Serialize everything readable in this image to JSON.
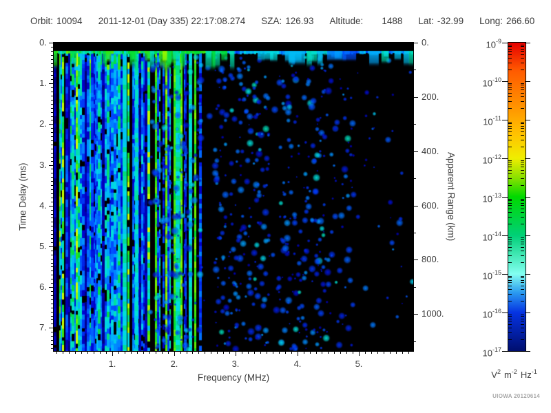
{
  "header": {
    "orbit_label": "Orbit:",
    "orbit_value": "10094",
    "datetime": "2011-12-01 (Day 335) 22:17:08.274",
    "sza_label": "SZA:",
    "sza_value": "126.93",
    "altitude_label": "Altitude:",
    "altitude_value": "1488",
    "lat_label": "Lat:",
    "lat_value": "-32.99",
    "long_label": "Long:",
    "long_value": "266.60"
  },
  "chart_data": {
    "type": "heatmap",
    "description": "Radar sounder ionogram: received spectral density vs frequency and time delay; dense blue/cyan/green vertical noise stripes below ~2.4 MHz, bright surface-echo band near 0.25 ms delay across all frequencies, diffuse blue speckle field at mid frequencies fading above ~4.9 MHz, black dropout bands near 2.5 and 3.6 MHz",
    "x_axis": {
      "label": "Frequency (MHz)",
      "range": [
        0.05,
        5.88
      ],
      "major_ticks": [
        1,
        2,
        3,
        4,
        5
      ],
      "major_tick_labels": [
        "1.",
        "2.",
        "3.",
        "4.",
        "5."
      ],
      "minor_tick_step": 0.1
    },
    "y_axis_left": {
      "label": "Time Delay (ms)",
      "range": [
        0,
        7.57
      ],
      "major_ticks": [
        0,
        1,
        2,
        3,
        4,
        5,
        6,
        7
      ],
      "major_tick_labels": [
        "0.",
        "1.",
        "2.",
        "3.",
        "4.",
        "5.",
        "6.",
        "7."
      ],
      "minor_tick_step": 0.1
    },
    "y_axis_right": {
      "label": "Apparent Range (km)",
      "range": [
        0,
        1136
      ],
      "major_ticks": [
        0,
        200,
        400,
        600,
        800,
        1000
      ],
      "major_tick_labels": [
        "0.",
        "200.",
        "400.",
        "600.",
        "800.",
        "1000."
      ],
      "minor_tick_step": 100
    },
    "colorbar": {
      "scale": "log",
      "mantissa_base": "10",
      "exponents": [
        "-9",
        "-10",
        "-11",
        "-12",
        "-13",
        "-14",
        "-15",
        "-16",
        "-17"
      ],
      "top_value": 1e-09,
      "bottom_value": 1e-17,
      "units_parts": [
        {
          "base": "V",
          "exp": "2"
        },
        {
          "base": "m",
          "exp": "-2"
        },
        {
          "base": "Hz",
          "exp": "-1"
        }
      ],
      "gradient_stops": [
        {
          "pos": 0.0,
          "color": "#e60000"
        },
        {
          "pos": 0.09,
          "color": "#ff5a00"
        },
        {
          "pos": 0.2,
          "color": "#ff8f00"
        },
        {
          "pos": 0.3,
          "color": "#ffc400"
        },
        {
          "pos": 0.375,
          "color": "#efee00"
        },
        {
          "pos": 0.44,
          "color": "#86e000"
        },
        {
          "pos": 0.5,
          "color": "#00d900"
        },
        {
          "pos": 0.625,
          "color": "#00d077"
        },
        {
          "pos": 0.75,
          "color": "#83fff1"
        },
        {
          "pos": 0.81,
          "color": "#2b9bf0"
        },
        {
          "pos": 0.875,
          "color": "#0533e2"
        },
        {
          "pos": 1.0,
          "color": "#000e6e"
        }
      ]
    },
    "features": {
      "blank_top_band_ms": [
        0,
        0.2
      ],
      "surface_echo_delay_ms": 0.24,
      "striped_noise_f_mhz": [
        0.05,
        2.45
      ],
      "dense_stripe_end_f_mhz": 1.6,
      "blackout_bands_f_mhz": [
        [
          2.45,
          2.66
        ],
        [
          3.55,
          3.7
        ]
      ],
      "speckle_fade_f_mhz": 4.45,
      "sparse_beyond_f_mhz": 4.9
    },
    "render_seed": 20120614
  },
  "credit": "UIOWA 20120614"
}
